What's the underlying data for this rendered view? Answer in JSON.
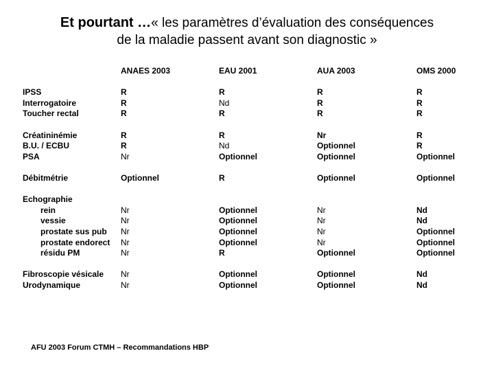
{
  "title": {
    "emphasis": "Et pourtant …",
    "quote_line1": "« les paramètres d’évaluation des conséquences",
    "quote_line2": "de la maladie passent avant son diagnostic »"
  },
  "table": {
    "columns": [
      "ANAES 2003",
      "EAU 2001",
      "AUA 2003",
      "OMS 2000"
    ],
    "rows": [
      {
        "type": "spacer"
      },
      {
        "label": "IPSS",
        "cells": [
          {
            "t": "R",
            "b": true
          },
          {
            "t": "R",
            "b": true
          },
          {
            "t": "R",
            "b": true
          },
          {
            "t": "R",
            "b": true
          }
        ]
      },
      {
        "label": "Interrogatoire",
        "cells": [
          {
            "t": "R",
            "b": true
          },
          {
            "t": "Nd",
            "b": false
          },
          {
            "t": "R",
            "b": true
          },
          {
            "t": "R",
            "b": true
          }
        ]
      },
      {
        "label": "Toucher rectal",
        "cells": [
          {
            "t": "R",
            "b": true
          },
          {
            "t": "R",
            "b": true
          },
          {
            "t": "R",
            "b": true
          },
          {
            "t": "R",
            "b": true
          }
        ]
      },
      {
        "type": "spacer"
      },
      {
        "label": "Créatininémie",
        "cells": [
          {
            "t": "R",
            "b": true
          },
          {
            "t": "R",
            "b": true
          },
          {
            "t": "Nr",
            "b": true
          },
          {
            "t": "R",
            "b": true
          }
        ]
      },
      {
        "label": "B.U. / ECBU",
        "cells": [
          {
            "t": "R",
            "b": true
          },
          {
            "t": "Nd",
            "b": false
          },
          {
            "t": "Optionnel",
            "b": true
          },
          {
            "t": "R",
            "b": true
          }
        ]
      },
      {
        "label": "PSA",
        "cells": [
          {
            "t": "Nr",
            "b": false
          },
          {
            "t": "Optionnel",
            "b": true
          },
          {
            "t": "Optionnel",
            "b": true
          },
          {
            "t": "Optionnel",
            "b": true
          }
        ]
      },
      {
        "type": "spacer"
      },
      {
        "label": "Débitmétrie",
        "cells": [
          {
            "t": "Optionnel",
            "b": true
          },
          {
            "t": "R",
            "b": true
          },
          {
            "t": "Optionnel",
            "b": true
          },
          {
            "t": "Optionnel",
            "b": true
          }
        ]
      },
      {
        "type": "spacer"
      },
      {
        "label": "Echographie",
        "cells": []
      },
      {
        "label": "rein",
        "indent": true,
        "cells": [
          {
            "t": "Nr",
            "b": false
          },
          {
            "t": "Optionnel",
            "b": true
          },
          {
            "t": "Nr",
            "b": false
          },
          {
            "t": "Nd",
            "b": true
          }
        ]
      },
      {
        "label": "vessie",
        "indent": true,
        "cells": [
          {
            "t": "Nr",
            "b": false
          },
          {
            "t": "Optionnel",
            "b": true
          },
          {
            "t": "Nr",
            "b": false
          },
          {
            "t": "Nd",
            "b": true
          }
        ]
      },
      {
        "label": "prostate sus pub",
        "indent": true,
        "cells": [
          {
            "t": "Nr",
            "b": false
          },
          {
            "t": "Optionnel",
            "b": true
          },
          {
            "t": "Nr",
            "b": false
          },
          {
            "t": "Optionnel",
            "b": true
          }
        ]
      },
      {
        "label": "prostate endorect",
        "indent": true,
        "cells": [
          {
            "t": "Nr",
            "b": false
          },
          {
            "t": "Optionnel",
            "b": true
          },
          {
            "t": "Nr",
            "b": false
          },
          {
            "t": "Optionnel",
            "b": true
          }
        ]
      },
      {
        "label": "résidu PM",
        "indent": true,
        "cells": [
          {
            "t": "Nr",
            "b": false
          },
          {
            "t": "R",
            "b": true
          },
          {
            "t": "Optionnel",
            "b": true
          },
          {
            "t": "Optionnel",
            "b": true
          }
        ]
      },
      {
        "type": "spacer"
      },
      {
        "label": "Fibroscopie vésicale",
        "cells": [
          {
            "t": "Nr",
            "b": false
          },
          {
            "t": "Optionnel",
            "b": true
          },
          {
            "t": "Optionnel",
            "b": true
          },
          {
            "t": "Nd",
            "b": true
          }
        ]
      },
      {
        "label": "Urodynamique",
        "cells": [
          {
            "t": "Nr",
            "b": false
          },
          {
            "t": "Optionnel",
            "b": true
          },
          {
            "t": "Optionnel",
            "b": true
          },
          {
            "t": "Nd",
            "b": true
          }
        ]
      }
    ]
  },
  "footer": "AFU 2003 Forum CTMH – Recommandations HBP"
}
